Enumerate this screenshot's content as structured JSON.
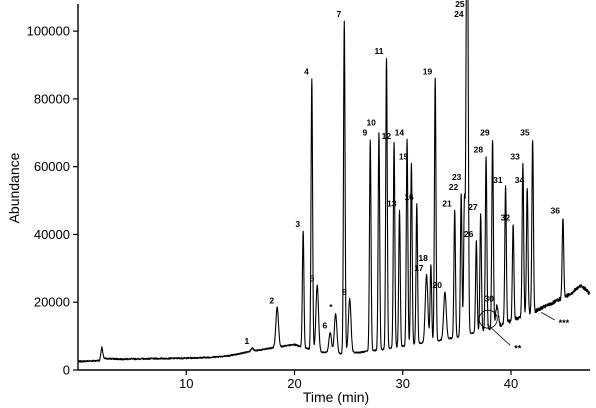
{
  "chart_data": {
    "type": "line",
    "xlabel": "Time (min)",
    "ylabel": "Abundance",
    "xlim": [
      0,
      47.3
    ],
    "ylim": [
      0,
      108000
    ],
    "x_ticks": [
      10,
      20,
      30,
      40
    ],
    "y_ticks": [
      0,
      20000,
      40000,
      60000,
      80000,
      100000
    ],
    "y_tick_labels": [
      "0",
      "20000",
      "40000",
      "60000",
      "80000",
      "100000"
    ],
    "baseline": [
      [
        0.0,
        2500
      ],
      [
        2.0,
        2800
      ],
      [
        2.2,
        6800
      ],
      [
        2.4,
        3400
      ],
      [
        4,
        3200
      ],
      [
        6,
        3300
      ],
      [
        8,
        3400
      ],
      [
        10,
        3500
      ],
      [
        12,
        3700
      ],
      [
        14,
        4200
      ],
      [
        15.5,
        5200
      ],
      [
        17,
        6000
      ],
      [
        18.5,
        6800
      ],
      [
        20,
        7500
      ],
      [
        22,
        5500
      ],
      [
        24,
        4800
      ],
      [
        26,
        5200
      ],
      [
        28,
        6000
      ],
      [
        30,
        7000
      ],
      [
        32,
        8000
      ],
      [
        34,
        9000
      ],
      [
        36,
        10500
      ],
      [
        38,
        12000
      ],
      [
        40,
        14500
      ],
      [
        42,
        17000
      ],
      [
        44,
        20000
      ],
      [
        45.5,
        22500
      ],
      [
        46.5,
        25000
      ],
      [
        47.3,
        22500
      ]
    ],
    "peaks": [
      {
        "label": "1",
        "rt": 16.1,
        "height": 6500
      },
      {
        "label": "2",
        "rt": 18.4,
        "height": 18500
      },
      {
        "label": "3",
        "rt": 20.8,
        "height": 41000
      },
      {
        "label": "4",
        "rt": 21.6,
        "height": 86000
      },
      {
        "label": "5",
        "rt": 22.1,
        "height": 25000
      },
      {
        "label": "6",
        "rt": 23.3,
        "height": 11000
      },
      {
        "label": "*",
        "rt": 23.8,
        "height": 16500
      },
      {
        "label": "7",
        "rt": 24.6,
        "height": 103000
      },
      {
        "label": "8",
        "rt": 25.1,
        "height": 21000
      },
      {
        "label": "9",
        "rt": 27.0,
        "height": 68000
      },
      {
        "label": "10",
        "rt": 27.8,
        "height": 70000
      },
      {
        "label": "11",
        "rt": 28.5,
        "height": 92000
      },
      {
        "label": "12",
        "rt": 29.2,
        "height": 67000
      },
      {
        "label": "13",
        "rt": 29.7,
        "height": 47000
      },
      {
        "label": "14",
        "rt": 30.4,
        "height": 68000
      },
      {
        "label": "15",
        "rt": 30.8,
        "height": 61000
      },
      {
        "label": "16",
        "rt": 31.3,
        "height": 49000
      },
      {
        "label": "17",
        "rt": 32.2,
        "height": 28000
      },
      {
        "label": "18",
        "rt": 32.6,
        "height": 31000
      },
      {
        "label": "19",
        "rt": 33.0,
        "height": 86000
      },
      {
        "label": "20",
        "rt": 33.9,
        "height": 23000
      },
      {
        "label": "21",
        "rt": 34.8,
        "height": 47000
      },
      {
        "label": "22",
        "rt": 35.4,
        "height": 52000
      },
      {
        "label": "23",
        "rt": 35.7,
        "height": 50000
      },
      {
        "label": "24",
        "rt": 35.9,
        "height": 103000
      },
      {
        "label": "25",
        "rt": 36.0,
        "height": 101000
      },
      {
        "label": "26",
        "rt": 36.8,
        "height": 38000
      },
      {
        "label": "27",
        "rt": 37.2,
        "height": 46000
      },
      {
        "label": "28",
        "rt": 37.7,
        "height": 63000
      },
      {
        "label": "29",
        "rt": 38.3,
        "height": 68000
      },
      {
        "label": "30",
        "rt": 38.7,
        "height": 19000
      },
      {
        "label": "31",
        "rt": 39.5,
        "height": 54000
      },
      {
        "label": "32",
        "rt": 40.2,
        "height": 43000
      },
      {
        "label": "33",
        "rt": 41.1,
        "height": 61000
      },
      {
        "label": "34",
        "rt": 41.5,
        "height": 54000
      },
      {
        "label": "35",
        "rt": 42.0,
        "height": 68000
      },
      {
        "label": "36",
        "rt": 44.8,
        "height": 45000
      }
    ],
    "markers": [
      {
        "label": "**",
        "x": 40.3,
        "y": 5500
      },
      {
        "label": "***",
        "x": 44.4,
        "y": 13000
      }
    ]
  }
}
